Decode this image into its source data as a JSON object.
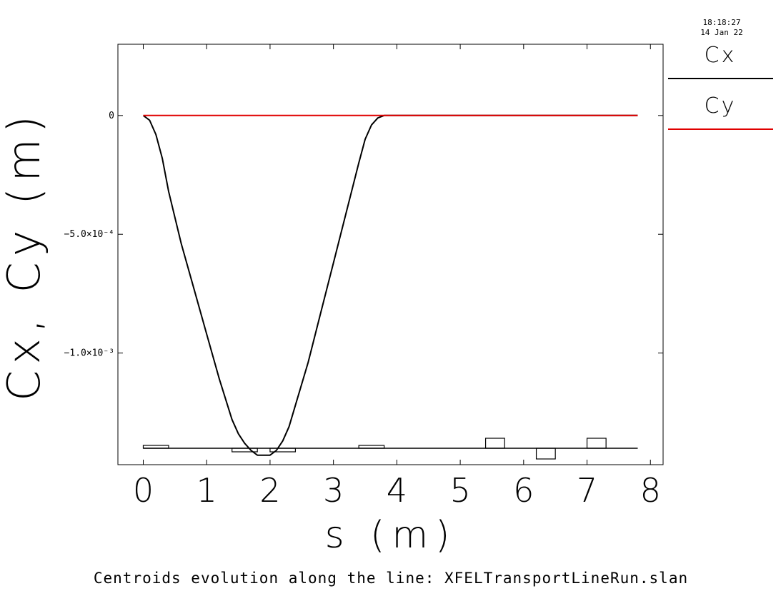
{
  "chart_data": {
    "type": "line",
    "title": "Centroids evolution along the line: XFELTransportLineRun.slan",
    "xlabel": "s (m)",
    "ylabel": "Cx, Cy (m)",
    "timestamp": {
      "time": "18:18:27",
      "date": "14 Jan 22"
    },
    "xlim": [
      -0.4,
      8.2
    ],
    "ylim": [
      -0.00147,
      0.0003
    ],
    "x_ticks": [
      "0",
      "1",
      "2",
      "3",
      "4",
      "5",
      "6",
      "7",
      "8"
    ],
    "y_ticks": [
      {
        "value": 0,
        "label": "0"
      },
      {
        "value": -0.0005,
        "label": "−5.0×10⁻⁴"
      },
      {
        "value": -0.001,
        "label": "−1.0×10⁻³"
      }
    ],
    "legend_position": "right",
    "series": [
      {
        "name": "Cx",
        "color": "#000000",
        "x": [
          0,
          0.1,
          0.2,
          0.3,
          0.4,
          0.6,
          0.8,
          1.0,
          1.2,
          1.4,
          1.5,
          1.6,
          1.7,
          1.8,
          1.9,
          2.0,
          2.1,
          2.2,
          2.3,
          2.4,
          2.6,
          2.8,
          3.0,
          3.2,
          3.4,
          3.5,
          3.6,
          3.7,
          3.8,
          4.0,
          5.0,
          6.0,
          7.0,
          7.8
        ],
        "y": [
          0,
          -2e-05,
          -8e-05,
          -0.00018,
          -0.00032,
          -0.00054,
          -0.00073,
          -0.00092,
          -0.00111,
          -0.00128,
          -0.00134,
          -0.00138,
          -0.00141,
          -0.00143,
          -0.00143,
          -0.00143,
          -0.00141,
          -0.00137,
          -0.00131,
          -0.00122,
          -0.00104,
          -0.00083,
          -0.00062,
          -0.00041,
          -0.0002,
          -0.0001,
          -4e-05,
          -1e-05,
          0,
          0,
          0,
          0,
          0,
          0
        ]
      },
      {
        "name": "Cy",
        "color": "#e00000",
        "x": [
          0,
          7.8
        ],
        "y": [
          0,
          0
        ]
      }
    ],
    "lattice": [
      {
        "start": 0.0,
        "end": 0.4,
        "type": "pos_small"
      },
      {
        "start": 1.4,
        "end": 1.8,
        "type": "neg_small"
      },
      {
        "start": 2.0,
        "end": 2.4,
        "type": "neg_small"
      },
      {
        "start": 3.4,
        "end": 3.8,
        "type": "pos_small"
      },
      {
        "start": 5.4,
        "end": 5.7,
        "type": "pos_large"
      },
      {
        "start": 6.2,
        "end": 6.5,
        "type": "neg_large"
      },
      {
        "start": 7.0,
        "end": 7.3,
        "type": "pos_large"
      }
    ],
    "lattice_range": [
      0,
      7.8
    ]
  }
}
